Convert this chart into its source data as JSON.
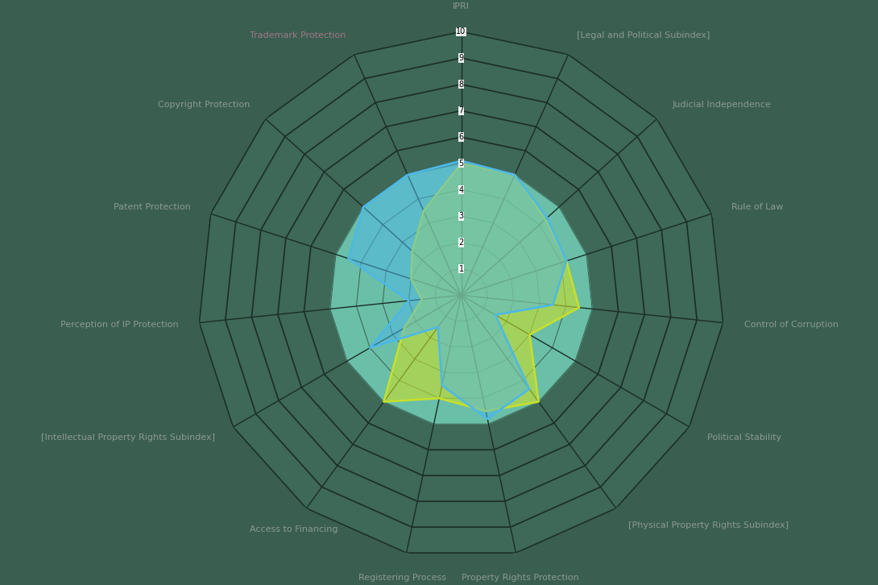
{
  "categories": [
    "IPRI",
    "[Legal and Political Subindex]",
    "Judicial Independence",
    "Rule of Law",
    "Control of Corruption",
    "Political Stability",
    "[Physical Property Rights Subindex]",
    "Property Rights Protection",
    "Registering Process",
    "Access to Financing",
    "[Intellectual Property Rights Subindex]",
    "Perception of IP Protection",
    "Patent Protection",
    "Copyright Protection",
    "Trademark Protection"
  ],
  "brazil_values": [
    5.1,
    5.0,
    4.4,
    4.2,
    3.5,
    1.5,
    4.4,
    4.8,
    3.5,
    1.5,
    4.0,
    2.0,
    4.5,
    5.0,
    5.0
  ],
  "india_values": [
    5.0,
    5.0,
    4.3,
    4.2,
    4.5,
    3.0,
    5.0,
    4.5,
    4.0,
    5.0,
    2.5,
    1.5,
    2.0,
    2.5,
    3.5
  ],
  "brazil_color": "#4db8e8",
  "brazil_fill": "#4db8e8",
  "india_color": "#c8e02a",
  "india_fill": "#c8e02a",
  "background_outer": "#3a5e50",
  "background_inner": "#6bbfaa",
  "grid_outer_color": "#1a2e28",
  "grid_inner_color": "#4a8a78",
  "label_color": "#8a9a92",
  "trademark_color": "#a07888",
  "tick_label_color": "#ffffff",
  "scale_max": 10,
  "scale_ticks": [
    1,
    2,
    3,
    4,
    5,
    6,
    7,
    8,
    9,
    10
  ],
  "fill_alpha_brazil": 0.5,
  "fill_alpha_india": 0.6
}
